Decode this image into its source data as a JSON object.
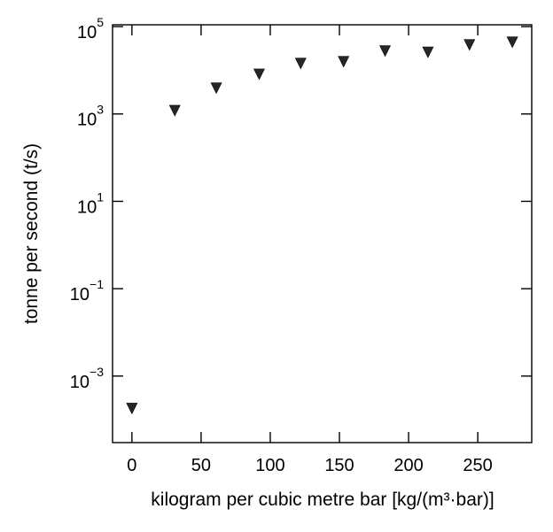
{
  "chart_data": {
    "type": "scatter",
    "title": "",
    "xlabel": "kilogram per cubic metre bar [kg/(m³·bar)]",
    "ylabel": "tonne per second (t/s)",
    "xlim": [
      -14,
      289
    ],
    "ylim": [
      3e-05,
      110000
    ],
    "yscale": "log",
    "grid": false,
    "marker": "triangle-down",
    "marker_color": "#000000",
    "x_ticks": [
      {
        "value": 0,
        "label": "0"
      },
      {
        "value": 50,
        "label": "50"
      },
      {
        "value": 100,
        "label": "100"
      },
      {
        "value": 150,
        "label": "150"
      },
      {
        "value": 200,
        "label": "200"
      },
      {
        "value": 250,
        "label": "250"
      }
    ],
    "y_ticks": [
      {
        "value": 0.001,
        "base": "10",
        "exp": "−3"
      },
      {
        "value": 0.1,
        "base": "10",
        "exp": "−1"
      },
      {
        "value": 10,
        "base": "10",
        "exp": "1"
      },
      {
        "value": 1000,
        "base": "10",
        "exp": "3"
      },
      {
        "value": 100000,
        "base": "10",
        "exp": "5"
      }
    ],
    "series": [
      {
        "x": [
          0,
          31,
          61,
          92,
          122,
          153,
          183,
          214,
          244,
          275
        ],
        "y": [
          0.00019,
          1250,
          4100,
          8500,
          15000,
          16500,
          29000,
          27000,
          40000,
          46000
        ]
      }
    ]
  }
}
